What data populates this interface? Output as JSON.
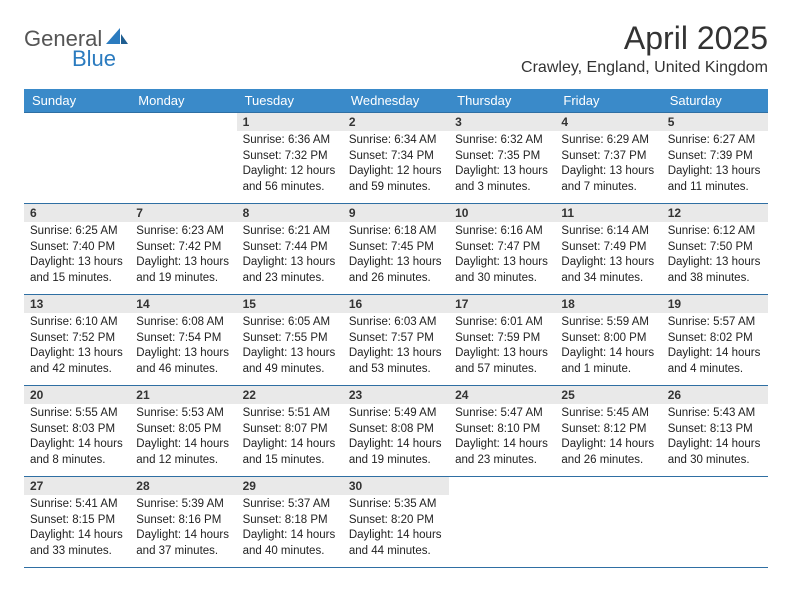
{
  "brand": {
    "word1": "General",
    "word2": "Blue"
  },
  "title": "April 2025",
  "location": "Crawley, England, United Kingdom",
  "colors": {
    "header_bg": "#3a8ac9",
    "header_text": "#ffffff",
    "rule": "#2f6fa3",
    "daynum_bg": "#e9e9e9",
    "page_bg": "#ffffff",
    "logo_blue": "#2b7bbf",
    "text": "#222222"
  },
  "typography": {
    "title_fontsize": 32,
    "location_fontsize": 16,
    "dayhead_fontsize": 13,
    "cell_fontsize": 11.5,
    "daynum_fontsize": 12
  },
  "layout": {
    "columns": 7,
    "rows": 5,
    "start_weekday": "Sunday"
  },
  "weekdays": [
    "Sunday",
    "Monday",
    "Tuesday",
    "Wednesday",
    "Thursday",
    "Friday",
    "Saturday"
  ],
  "weeks": [
    [
      null,
      null,
      {
        "n": 1,
        "sunrise": "6:36 AM",
        "sunset": "7:32 PM",
        "daylight": "12 hours and 56 minutes."
      },
      {
        "n": 2,
        "sunrise": "6:34 AM",
        "sunset": "7:34 PM",
        "daylight": "12 hours and 59 minutes."
      },
      {
        "n": 3,
        "sunrise": "6:32 AM",
        "sunset": "7:35 PM",
        "daylight": "13 hours and 3 minutes."
      },
      {
        "n": 4,
        "sunrise": "6:29 AM",
        "sunset": "7:37 PM",
        "daylight": "13 hours and 7 minutes."
      },
      {
        "n": 5,
        "sunrise": "6:27 AM",
        "sunset": "7:39 PM",
        "daylight": "13 hours and 11 minutes."
      }
    ],
    [
      {
        "n": 6,
        "sunrise": "6:25 AM",
        "sunset": "7:40 PM",
        "daylight": "13 hours and 15 minutes."
      },
      {
        "n": 7,
        "sunrise": "6:23 AM",
        "sunset": "7:42 PM",
        "daylight": "13 hours and 19 minutes."
      },
      {
        "n": 8,
        "sunrise": "6:21 AM",
        "sunset": "7:44 PM",
        "daylight": "13 hours and 23 minutes."
      },
      {
        "n": 9,
        "sunrise": "6:18 AM",
        "sunset": "7:45 PM",
        "daylight": "13 hours and 26 minutes."
      },
      {
        "n": 10,
        "sunrise": "6:16 AM",
        "sunset": "7:47 PM",
        "daylight": "13 hours and 30 minutes."
      },
      {
        "n": 11,
        "sunrise": "6:14 AM",
        "sunset": "7:49 PM",
        "daylight": "13 hours and 34 minutes."
      },
      {
        "n": 12,
        "sunrise": "6:12 AM",
        "sunset": "7:50 PM",
        "daylight": "13 hours and 38 minutes."
      }
    ],
    [
      {
        "n": 13,
        "sunrise": "6:10 AM",
        "sunset": "7:52 PM",
        "daylight": "13 hours and 42 minutes."
      },
      {
        "n": 14,
        "sunrise": "6:08 AM",
        "sunset": "7:54 PM",
        "daylight": "13 hours and 46 minutes."
      },
      {
        "n": 15,
        "sunrise": "6:05 AM",
        "sunset": "7:55 PM",
        "daylight": "13 hours and 49 minutes."
      },
      {
        "n": 16,
        "sunrise": "6:03 AM",
        "sunset": "7:57 PM",
        "daylight": "13 hours and 53 minutes."
      },
      {
        "n": 17,
        "sunrise": "6:01 AM",
        "sunset": "7:59 PM",
        "daylight": "13 hours and 57 minutes."
      },
      {
        "n": 18,
        "sunrise": "5:59 AM",
        "sunset": "8:00 PM",
        "daylight": "14 hours and 1 minute."
      },
      {
        "n": 19,
        "sunrise": "5:57 AM",
        "sunset": "8:02 PM",
        "daylight": "14 hours and 4 minutes."
      }
    ],
    [
      {
        "n": 20,
        "sunrise": "5:55 AM",
        "sunset": "8:03 PM",
        "daylight": "14 hours and 8 minutes."
      },
      {
        "n": 21,
        "sunrise": "5:53 AM",
        "sunset": "8:05 PM",
        "daylight": "14 hours and 12 minutes."
      },
      {
        "n": 22,
        "sunrise": "5:51 AM",
        "sunset": "8:07 PM",
        "daylight": "14 hours and 15 minutes."
      },
      {
        "n": 23,
        "sunrise": "5:49 AM",
        "sunset": "8:08 PM",
        "daylight": "14 hours and 19 minutes."
      },
      {
        "n": 24,
        "sunrise": "5:47 AM",
        "sunset": "8:10 PM",
        "daylight": "14 hours and 23 minutes."
      },
      {
        "n": 25,
        "sunrise": "5:45 AM",
        "sunset": "8:12 PM",
        "daylight": "14 hours and 26 minutes."
      },
      {
        "n": 26,
        "sunrise": "5:43 AM",
        "sunset": "8:13 PM",
        "daylight": "14 hours and 30 minutes."
      }
    ],
    [
      {
        "n": 27,
        "sunrise": "5:41 AM",
        "sunset": "8:15 PM",
        "daylight": "14 hours and 33 minutes."
      },
      {
        "n": 28,
        "sunrise": "5:39 AM",
        "sunset": "8:16 PM",
        "daylight": "14 hours and 37 minutes."
      },
      {
        "n": 29,
        "sunrise": "5:37 AM",
        "sunset": "8:18 PM",
        "daylight": "14 hours and 40 minutes."
      },
      {
        "n": 30,
        "sunrise": "5:35 AM",
        "sunset": "8:20 PM",
        "daylight": "14 hours and 44 minutes."
      },
      null,
      null,
      null
    ]
  ],
  "labels": {
    "sunrise": "Sunrise:",
    "sunset": "Sunset:",
    "daylight": "Daylight:"
  }
}
